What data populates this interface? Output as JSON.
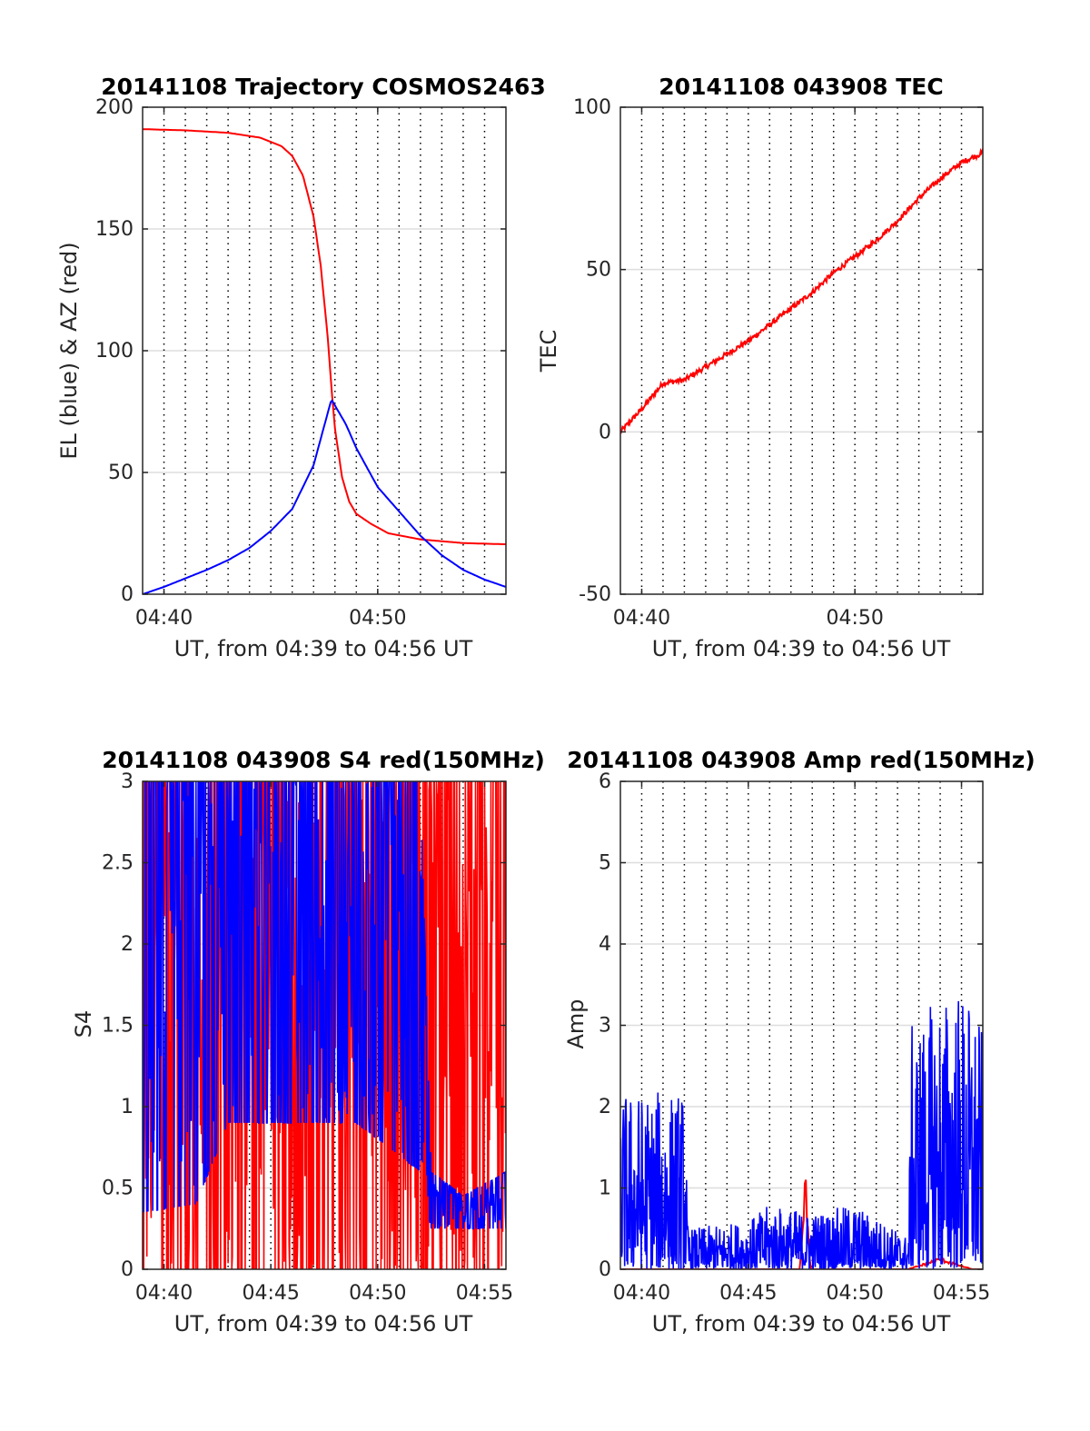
{
  "colors": {
    "red": "#ff0000",
    "blue": "#0000ff",
    "grid": "#dddddd",
    "axis": "#262626",
    "background": "#ffffff"
  },
  "chart_data": [
    {
      "id": "trajectory",
      "type": "line",
      "title": "20141108 Trajectory COSMOS2463",
      "xlabel": "UT, from 04:39 to 04:56 UT",
      "ylabel": "EL (blue) & AZ (red)",
      "xlim": [
        "04:39",
        "04:56"
      ],
      "ylim": [
        0,
        200
      ],
      "xticks": [
        "04:40",
        "04:50"
      ],
      "yticks": [
        "0",
        "50",
        "100",
        "150",
        "200"
      ],
      "grid": "horizontal solid at y ticks, vertical dotted each minute",
      "series": [
        {
          "color": "red",
          "description": "azimuth",
          "points": [
            [
              "04:39:00",
              191
            ],
            [
              "04:41:00",
              190.5
            ],
            [
              "04:43:00",
              189.5
            ],
            [
              "04:44:30",
              187.5
            ],
            [
              "04:45:30",
              184
            ],
            [
              "04:46:00",
              180
            ],
            [
              "04:46:30",
              172
            ],
            [
              "04:47:00",
              155
            ],
            [
              "04:47:20",
              135
            ],
            [
              "04:47:40",
              105
            ],
            [
              "04:47:50",
              85
            ],
            [
              "04:48:00",
              68
            ],
            [
              "04:48:20",
              48
            ],
            [
              "04:48:40",
              38
            ],
            [
              "04:49:00",
              33
            ],
            [
              "04:49:40",
              29
            ],
            [
              "04:50:30",
              25
            ],
            [
              "04:52:00",
              22.5
            ],
            [
              "04:54:00",
              21
            ],
            [
              "04:56:00",
              20.5
            ]
          ]
        },
        {
          "color": "blue",
          "description": "elevation",
          "points": [
            [
              "04:39:00",
              0
            ],
            [
              "04:40:00",
              3
            ],
            [
              "04:41:00",
              6.5
            ],
            [
              "04:42:00",
              10
            ],
            [
              "04:43:00",
              14
            ],
            [
              "04:44:00",
              19
            ],
            [
              "04:45:00",
              26
            ],
            [
              "04:46:00",
              35
            ],
            [
              "04:47:00",
              53
            ],
            [
              "04:47:50",
              80
            ],
            [
              "04:48:30",
              70
            ],
            [
              "04:49:00",
              60
            ],
            [
              "04:50:00",
              44
            ],
            [
              "04:51:00",
              34
            ],
            [
              "04:52:00",
              24
            ],
            [
              "04:53:00",
              16
            ],
            [
              "04:54:00",
              10
            ],
            [
              "04:55:00",
              6
            ],
            [
              "04:56:00",
              3
            ]
          ]
        }
      ]
    },
    {
      "id": "tec",
      "type": "line",
      "title": "20141108 043908 TEC",
      "xlabel": "UT, from 04:39 to 04:56 UT",
      "ylabel": "TEC",
      "xlim": [
        "04:39",
        "04:56"
      ],
      "ylim": [
        -50,
        100
      ],
      "xticks": [
        "04:40",
        "04:50"
      ],
      "yticks": [
        "-50",
        "0",
        "50",
        "100"
      ],
      "grid": "horizontal solid at y ticks, vertical dotted each minute",
      "series": [
        {
          "color": "red",
          "description": "TEC",
          "points": [
            [
              "04:39:00",
              0
            ],
            [
              "04:40:00",
              7
            ],
            [
              "04:41:00",
              15
            ],
            [
              "04:42:00",
              16
            ],
            [
              "04:43:00",
              20
            ],
            [
              "04:44:00",
              24
            ],
            [
              "04:45:00",
              28
            ],
            [
              "04:46:00",
              33
            ],
            [
              "04:47:00",
              38
            ],
            [
              "04:48:00",
              43
            ],
            [
              "04:49:00",
              49
            ],
            [
              "04:50:00",
              54
            ],
            [
              "04:51:00",
              59
            ],
            [
              "04:52:00",
              65
            ],
            [
              "04:53:00",
              72
            ],
            [
              "04:54:00",
              78
            ],
            [
              "04:55:00",
              83
            ],
            [
              "04:56:00",
              86
            ]
          ]
        }
      ]
    },
    {
      "id": "s4",
      "type": "line",
      "title": "20141108 043908 S4 red(150MHz)",
      "xlabel": "UT, from 04:39 to 04:56 UT",
      "ylabel": "S4",
      "xlim": [
        "04:39",
        "04:56"
      ],
      "ylim": [
        0,
        3
      ],
      "xticks": [
        "04:40",
        "04:45",
        "04:50",
        "04:55"
      ],
      "yticks": [
        "0",
        "0.5",
        "1",
        "1.5",
        "2",
        "2.5",
        "3"
      ],
      "grid": "horizontal solid at y ticks, vertical dotted each minute",
      "series": [
        {
          "color": "red",
          "description": "S4 red(150MHz), dense noisy trace spanning 0 to 3",
          "envelope": [
            [
              "04:39:00",
              0,
              3
            ],
            [
              "04:42:00",
              0,
              3
            ],
            [
              "04:44:00",
              0,
              3
            ],
            [
              "04:46:00",
              0,
              3
            ],
            [
              "04:48:00",
              0,
              3
            ],
            [
              "04:50:00",
              0,
              3
            ],
            [
              "04:52:00",
              0,
              3
            ],
            [
              "04:54:00",
              0,
              3
            ],
            [
              "04:56:00",
              0,
              3
            ]
          ]
        },
        {
          "color": "blue",
          "description": "S4 blue, dense noisy trace",
          "envelope": [
            [
              "04:39:00",
              0.35,
              3
            ],
            [
              "04:41:30",
              0.4,
              3
            ],
            [
              "04:43:00",
              0.9,
              3
            ],
            [
              "04:46:00",
              0.9,
              3
            ],
            [
              "04:49:00",
              0.9,
              3
            ],
            [
              "04:52:00",
              0.6,
              3
            ],
            [
              "04:52:30",
              0.25,
              0.6
            ],
            [
              "04:54:00",
              0.25,
              0.45
            ],
            [
              "04:56:00",
              0.25,
              0.6
            ]
          ]
        }
      ]
    },
    {
      "id": "amp",
      "type": "line",
      "title": "20141108 043908 Amp red(150MHz)",
      "xlabel": "UT, from 04:39 to 04:56 UT",
      "ylabel": "Amp",
      "xlim": [
        "04:39",
        "04:56"
      ],
      "ylim": [
        0,
        6
      ],
      "xticks": [
        "04:40",
        "04:45",
        "04:50",
        "04:55"
      ],
      "yticks": [
        "0",
        "1",
        "2",
        "3",
        "4",
        "5",
        "6"
      ],
      "grid": "horizontal solid at y ticks, vertical dotted each minute",
      "series": [
        {
          "color": "red",
          "description": "Amp red(150MHz), near zero with a spike near 04:47:40",
          "peaks": [
            [
              "04:47:40",
              1.3
            ],
            [
              "04:54:00",
              0.15
            ]
          ]
        },
        {
          "color": "blue",
          "description": "Amp blue, noisy",
          "envelope": [
            [
              "04:39:00",
              0,
              2.2
            ],
            [
              "04:42:00",
              0,
              2.2
            ],
            [
              "04:42:10",
              0,
              0.5
            ],
            [
              "04:45:00",
              0,
              0.6
            ],
            [
              "04:46:00",
              0,
              0.8
            ],
            [
              "04:48:00",
              0,
              0.7
            ],
            [
              "04:50:00",
              0,
              0.8
            ],
            [
              "04:52:30",
              0,
              0.4
            ],
            [
              "04:52:40",
              0,
              3.0
            ],
            [
              "04:54:00",
              0,
              3.4
            ],
            [
              "04:55:00",
              0,
              3.5
            ],
            [
              "04:56:00",
              0,
              3.0
            ]
          ]
        }
      ]
    }
  ]
}
